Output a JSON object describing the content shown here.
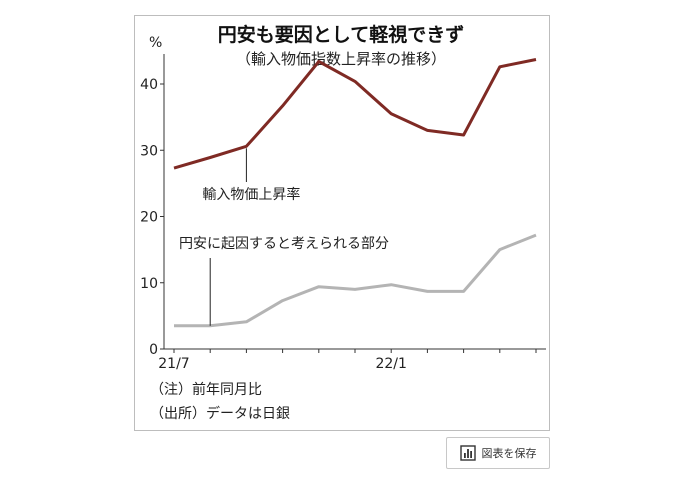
{
  "chart_data": {
    "type": "line",
    "title": "円安も要因として軽視できず",
    "subtitle": "（輸入物価指数上昇率の推移）",
    "ylabel": "%",
    "ylim": [
      0,
      48
    ],
    "yticks": [
      0,
      10,
      20,
      30,
      40
    ],
    "x": [
      "21/7",
      "21/8",
      "21/9",
      "21/10",
      "21/11",
      "21/12",
      "22/1",
      "22/2",
      "22/3",
      "22/4",
      "22/5"
    ],
    "xtick_labels": [
      {
        "index": 0,
        "label": "21/7"
      },
      {
        "index": 6,
        "label": "22/1"
      }
    ],
    "series": [
      {
        "name": "輸入物価上昇率",
        "color": "#7f2a24",
        "values": [
          27.3,
          28.9,
          30.6,
          36.7,
          43.4,
          40.4,
          35.5,
          33.0,
          32.3,
          42.6,
          43.7
        ]
      },
      {
        "name": "円安に起因すると考えられる部分",
        "color": "#b4b4b4",
        "values": [
          3.5,
          3.5,
          4.1,
          7.3,
          9.4,
          9.0,
          9.7,
          8.7,
          8.7,
          15.0,
          17.2
        ]
      }
    ],
    "annotations": [
      {
        "text": "輸入物価上昇率",
        "series": 0,
        "index": 2
      },
      {
        "text": "円安に起因すると考えられる部分",
        "series": 1,
        "index": 1
      }
    ],
    "grid": false,
    "legend": "none"
  },
  "notes": {
    "note": "（注）前年同月比",
    "source": "（出所）データは日銀"
  },
  "save_button": {
    "label": "図表を保存",
    "icon": "bar-chart-icon"
  }
}
